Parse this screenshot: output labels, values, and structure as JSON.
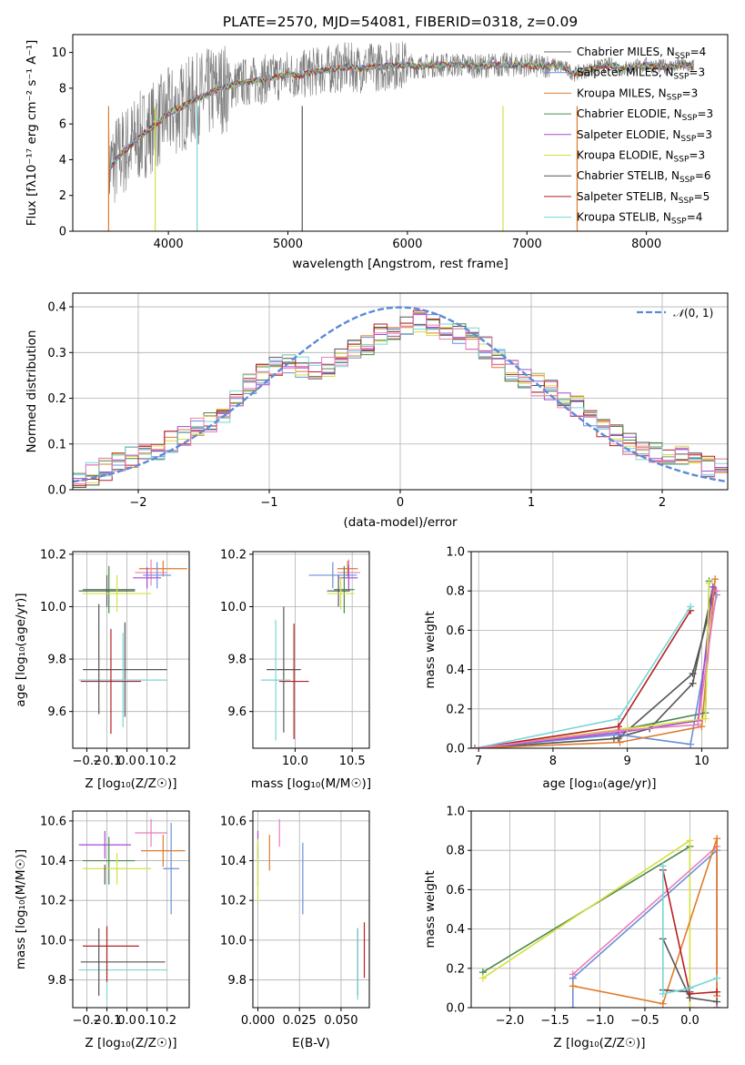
{
  "colors": {
    "chabrier_miles": "#6e6e6e",
    "salpeter_miles": "#6a8fd9",
    "kroupa_miles": "#e07b2a",
    "chabrier_elodie": "#4a8a4a",
    "salpeter_elodie": "#a54ad0",
    "kroupa_elodie": "#d6e040",
    "chabrier_stelib": "#555555",
    "salpeter_stelib": "#b81e22",
    "kroupa_stelib": "#78d6d6",
    "pink": "#e97fb9",
    "normal_curve": "#5b8ad8"
  },
  "chart_data": [
    {
      "id": "spectrum",
      "type": "line",
      "title": "PLATE=2570, MJD=54081, FIBERID=0318, z=0.09",
      "xlabel": "wavelength [Angstrom, rest frame]",
      "ylabel": "Flux [fλ10⁻¹⁷ erg cm⁻² s⁻¹ A⁻¹]",
      "xlim": [
        3200,
        8680
      ],
      "ylim": [
        0,
        11
      ],
      "xticks": [
        "4000",
        "5000",
        "6000",
        "7000",
        "8000"
      ],
      "yticks": [
        "0",
        "2",
        "4",
        "6",
        "8",
        "10"
      ],
      "legend": "upper-right",
      "series": [
        {
          "name": "Chabrier MILES, N_SSP=4",
          "label_main": "Chabrier MILES, N",
          "label_sub": "SSP",
          "label_tail": "=4",
          "color": "#6e6e6e"
        },
        {
          "name": "Salpeter MILES, N_SSP=3",
          "label_main": "Salpeter MILES, N",
          "label_sub": "SSP",
          "label_tail": "=3",
          "color": "#6a8fd9"
        },
        {
          "name": "Kroupa MILES, N_SSP=3",
          "label_main": "Kroupa MILES, N",
          "label_sub": "SSP",
          "label_tail": "=3",
          "color": "#e07b2a"
        },
        {
          "name": "Chabrier ELODIE, N_SSP=3",
          "label_main": "Chabrier ELODIE, N",
          "label_sub": "SSP",
          "label_tail": "=3",
          "color": "#4a8a4a"
        },
        {
          "name": "Salpeter ELODIE, N_SSP=3",
          "label_main": "Salpeter ELODIE, N",
          "label_sub": "SSP",
          "label_tail": "=3",
          "color": "#a54ad0"
        },
        {
          "name": "Kroupa ELODIE, N_SSP=3",
          "label_main": "Kroupa ELODIE, N",
          "label_sub": "SSP",
          "label_tail": "=3",
          "color": "#d6e040"
        },
        {
          "name": "Chabrier STELIB, N_SSP=6",
          "label_main": "Chabrier STELIB, N",
          "label_sub": "SSP",
          "label_tail": "=6",
          "color": "#555555"
        },
        {
          "name": "Salpeter STELIB, N_SSP=5",
          "label_main": "Salpeter STELIB, N",
          "label_sub": "SSP",
          "label_tail": "=5",
          "color": "#b81e22"
        },
        {
          "name": "Kroupa STELIB, N_SSP=4",
          "label_main": "Kroupa STELIB, N",
          "label_sub": "SSP",
          "label_tail": "=4",
          "color": "#78d6d6"
        }
      ],
      "model_curve": {
        "x": [
          3500,
          3600,
          3700,
          3800,
          3900,
          4000,
          4100,
          4200,
          4300,
          4400,
          4500,
          4600,
          4700,
          4800,
          4900,
          5000,
          5100,
          5200,
          5300,
          5400,
          5500,
          5600,
          5700,
          5800,
          5900,
          6000,
          6100,
          6200,
          6300,
          6400,
          6500,
          6600,
          6700,
          6800,
          6900,
          7000,
          7100,
          7200,
          7300,
          7400,
          7500,
          7600,
          7700,
          7800,
          7900,
          8000,
          8100,
          8200,
          8300,
          8400
        ],
        "y": [
          3.5,
          4.3,
          4.9,
          5.5,
          6.0,
          6.6,
          6.9,
          7.3,
          7.6,
          7.9,
          8.1,
          8.3,
          8.4,
          8.5,
          8.6,
          8.8,
          8.7,
          8.9,
          9.0,
          9.1,
          9.2,
          9.1,
          9.2,
          9.2,
          9.3,
          9.3,
          9.2,
          9.3,
          9.3,
          9.3,
          9.3,
          9.2,
          9.3,
          9.3,
          9.3,
          9.3,
          9.2,
          9.3,
          9.2,
          8.8,
          9.0,
          9.2,
          9.3,
          9.1,
          9.2,
          9.3,
          9.2,
          9.2,
          9.3,
          9.2
        ]
      },
      "data_band": {
        "x_start": 3500,
        "x_end": 8400,
        "y_low": 2.0,
        "y_high": 10.9
      }
    },
    {
      "id": "residuals",
      "type": "line",
      "xlabel": "(data-model)/error",
      "ylabel": "Normed distribution",
      "xlim": [
        -2.5,
        2.5
      ],
      "ylim": [
        0,
        0.43
      ],
      "xticks": [
        "−2",
        "−1",
        "0",
        "1",
        "2"
      ],
      "yticks": [
        "0.0",
        "0.1",
        "0.2",
        "0.3",
        "0.4"
      ],
      "legend": "upper-right",
      "reference": {
        "name": "𝒩(0, 1)",
        "label_main": "𝒩",
        "label_tail": "(0, 1)",
        "mean": 0,
        "sigma": 1
      },
      "histogram": {
        "x": [
          -2.5,
          -2.4,
          -2.3,
          -2.2,
          -2.1,
          -2.0,
          -1.9,
          -1.8,
          -1.7,
          -1.6,
          -1.5,
          -1.4,
          -1.3,
          -1.2,
          -1.1,
          -1.0,
          -0.9,
          -0.8,
          -0.7,
          -0.6,
          -0.5,
          -0.4,
          -0.3,
          -0.2,
          -0.1,
          0.0,
          0.1,
          0.2,
          0.3,
          0.4,
          0.5,
          0.6,
          0.7,
          0.8,
          0.9,
          1.0,
          1.1,
          1.2,
          1.3,
          1.4,
          1.5,
          1.6,
          1.7,
          1.8,
          1.9,
          2.0,
          2.1,
          2.2,
          2.3,
          2.4
        ],
        "y": [
          0.03,
          0.035,
          0.045,
          0.06,
          0.07,
          0.08,
          0.09,
          0.105,
          0.12,
          0.135,
          0.15,
          0.17,
          0.2,
          0.23,
          0.25,
          0.27,
          0.28,
          0.27,
          0.26,
          0.27,
          0.29,
          0.31,
          0.32,
          0.34,
          0.35,
          0.36,
          0.37,
          0.36,
          0.35,
          0.34,
          0.33,
          0.31,
          0.29,
          0.26,
          0.24,
          0.23,
          0.22,
          0.2,
          0.18,
          0.16,
          0.14,
          0.12,
          0.1,
          0.09,
          0.08,
          0.07,
          0.07,
          0.06,
          0.05,
          0.05
        ]
      }
    },
    {
      "id": "age-vs-Z",
      "type": "scatter",
      "xlabel": "Z [log₁₀(Z/Z☉)]",
      "ylabel": "age  [log₁₀(age/yr)]",
      "xlim": [
        -0.27,
        0.31
      ],
      "ylim": [
        9.46,
        10.21
      ],
      "xticks": [
        "−0.2",
        "−0.1",
        "0.0",
        "0.1",
        "0.2"
      ],
      "yticks": [
        "9.6",
        "9.8",
        "10.0",
        "10.2"
      ],
      "points": [
        {
          "x": 0.18,
          "y": 10.145,
          "xerr": 0.12,
          "yerr": 0.03,
          "color": "#e07b2a"
        },
        {
          "x": 0.12,
          "y": 10.13,
          "xerr": 0.08,
          "yerr": 0.05,
          "color": "#e97fb9"
        },
        {
          "x": 0.15,
          "y": 10.12,
          "xerr": 0.07,
          "yerr": 0.05,
          "color": "#6a8fd9"
        },
        {
          "x": 0.1,
          "y": 10.11,
          "xerr": 0.07,
          "yerr": 0.04,
          "color": "#a54ad0"
        },
        {
          "x": -0.09,
          "y": 10.065,
          "xerr": 0.13,
          "yerr": 0.09,
          "color": "#4a8a4a"
        },
        {
          "x": -0.1,
          "y": 10.06,
          "xerr": 0.14,
          "yerr": 0.06,
          "color": "#555555"
        },
        {
          "x": -0.05,
          "y": 10.05,
          "xerr": 0.17,
          "yerr": 0.07,
          "color": "#d6e040"
        },
        {
          "x": -0.01,
          "y": 9.76,
          "xerr": 0.21,
          "yerr": 0.18,
          "color": "#555555"
        },
        {
          "x": -0.02,
          "y": 9.72,
          "xerr": 0.22,
          "yerr": 0.18,
          "color": "#78d6d6"
        },
        {
          "x": -0.08,
          "y": 9.715,
          "xerr": 0.15,
          "yerr": 0.2,
          "color": "#b81e22"
        },
        {
          "x": -0.14,
          "y": 9.8,
          "xerr": 0.0,
          "yerr": 0.21,
          "color": "#555555"
        }
      ]
    },
    {
      "id": "age-vs-mass",
      "type": "scatter",
      "xlabel": "mass [log₁₀(M/M☉)]",
      "xlim": [
        9.63,
        10.65
      ],
      "ylim": [
        9.46,
        10.21
      ],
      "xticks": [
        "10.0",
        "10.5"
      ],
      "yticks": [
        "9.6",
        "9.8",
        "10.0",
        "10.2"
      ],
      "points": [
        {
          "x": 10.46,
          "y": 10.145,
          "xerr": 0.09,
          "yerr": 0.03,
          "color": "#e07b2a"
        },
        {
          "x": 10.47,
          "y": 10.13,
          "xerr": 0.1,
          "yerr": 0.05,
          "color": "#e97fb9"
        },
        {
          "x": 10.33,
          "y": 10.12,
          "xerr": 0.21,
          "yerr": 0.05,
          "color": "#6a8fd9"
        },
        {
          "x": 10.47,
          "y": 10.11,
          "xerr": 0.08,
          "yerr": 0.05,
          "color": "#a54ad0"
        },
        {
          "x": 10.43,
          "y": 10.065,
          "xerr": 0.09,
          "yerr": 0.09,
          "color": "#4a8a4a"
        },
        {
          "x": 10.38,
          "y": 10.06,
          "xerr": 0.1,
          "yerr": 0.06,
          "color": "#555555"
        },
        {
          "x": 10.4,
          "y": 10.05,
          "xerr": 0.12,
          "yerr": 0.06,
          "color": "#d6e040"
        },
        {
          "x": 9.9,
          "y": 9.76,
          "xerr": 0.15,
          "yerr": 0.24,
          "color": "#555555"
        },
        {
          "x": 9.83,
          "y": 9.72,
          "xerr": 0.13,
          "yerr": 0.23,
          "color": "#78d6d6"
        },
        {
          "x": 9.99,
          "y": 9.715,
          "xerr": 0.13,
          "yerr": 0.22,
          "color": "#b81e22"
        }
      ]
    },
    {
      "id": "mass-weight-vs-age",
      "type": "line",
      "xlabel": "age  [log₁₀(age/yr)]",
      "ylabel": "mass weight",
      "xlim": [
        6.9,
        10.35
      ],
      "ylim": [
        0,
        1.0
      ],
      "xticks": [
        "7",
        "8",
        "9",
        "10"
      ],
      "yticks": [
        "0.0",
        "0.2",
        "0.4",
        "0.6",
        "0.8",
        "1.0"
      ],
      "series": [
        {
          "color": "#555555",
          "x": [
            6.95,
            8.88,
            9.88,
            10.18
          ],
          "y": [
            0.0,
            0.05,
            0.38,
            0.8
          ]
        },
        {
          "color": "#555555",
          "x": [
            8.82,
            9.3,
            9.88,
            10.15
          ],
          "y": [
            0.05,
            0.1,
            0.33,
            0.82
          ]
        },
        {
          "color": "#6a8fd9",
          "x": [
            6.95,
            8.88,
            9.85,
            10.2
          ],
          "y": [
            0.0,
            0.07,
            0.02,
            0.78
          ]
        },
        {
          "color": "#e07b2a",
          "x": [
            6.95,
            8.9,
            10.0,
            10.18
          ],
          "y": [
            0.0,
            0.03,
            0.11,
            0.86
          ]
        },
        {
          "color": "#4a8a4a",
          "x": [
            6.95,
            9.0,
            10.05,
            10.1
          ],
          "y": [
            0.0,
            0.1,
            0.18,
            0.85
          ]
        },
        {
          "color": "#a54ad0",
          "x": [
            6.95,
            8.9,
            9.95,
            10.15
          ],
          "y": [
            0.0,
            0.08,
            0.14,
            0.82
          ]
        },
        {
          "color": "#d6e040",
          "x": [
            6.95,
            9.0,
            10.05,
            10.1
          ],
          "y": [
            0.0,
            0.1,
            0.15,
            0.84
          ]
        },
        {
          "color": "#b81e22",
          "x": [
            6.95,
            8.88,
            9.85
          ],
          "y": [
            0.0,
            0.11,
            0.7
          ]
        },
        {
          "color": "#78d6d6",
          "x": [
            6.95,
            8.88,
            9.85
          ],
          "y": [
            0.0,
            0.15,
            0.72
          ]
        },
        {
          "color": "#e97fb9",
          "x": [
            6.95,
            8.9,
            9.95,
            10.2
          ],
          "y": [
            0.0,
            0.09,
            0.12,
            0.8
          ]
        }
      ]
    },
    {
      "id": "mass-vs-Z",
      "type": "scatter",
      "xlabel": "Z [log₁₀(Z/Z☉)]",
      "ylabel": "mass [log₁₀(M/M☉)]",
      "xlim": [
        -0.27,
        0.31
      ],
      "ylim": [
        9.66,
        10.65
      ],
      "xticks": [
        "−0.2",
        "−0.1",
        "0.0",
        "0.1",
        "0.2"
      ],
      "yticks": [
        "9.8",
        "10.0",
        "10.2",
        "10.4",
        "10.6"
      ],
      "points": [
        {
          "x": 0.12,
          "y": 10.54,
          "xerr": 0.08,
          "yerr": 0.07,
          "color": "#e97fb9"
        },
        {
          "x": -0.11,
          "y": 10.48,
          "xerr": 0.13,
          "yerr": 0.07,
          "color": "#a54ad0"
        },
        {
          "x": 0.18,
          "y": 10.45,
          "xerr": 0.11,
          "yerr": 0.08,
          "color": "#e07b2a"
        },
        {
          "x": -0.09,
          "y": 10.4,
          "xerr": 0.13,
          "yerr": 0.12,
          "color": "#4a8a4a"
        },
        {
          "x": -0.05,
          "y": 10.36,
          "xerr": 0.17,
          "yerr": 0.08,
          "color": "#d6e040"
        },
        {
          "x": 0.22,
          "y": 10.36,
          "xerr": 0.04,
          "yerr": 0.23,
          "color": "#6a8fd9"
        },
        {
          "x": -0.11,
          "y": 10.33,
          "xerr": 0.0,
          "yerr": 0.05,
          "color": "#555555"
        },
        {
          "x": -0.08,
          "y": 9.97,
          "xerr": 0.14,
          "yerr": 0.0,
          "color": "#b81e22"
        },
        {
          "x": -0.02,
          "y": 9.89,
          "xerr": 0.21,
          "yerr": 0.0,
          "color": "#555555"
        },
        {
          "x": -0.02,
          "y": 9.85,
          "xerr": 0.22,
          "yerr": 0.0,
          "color": "#78d6d6"
        },
        {
          "x": -0.14,
          "y": 9.89,
          "xerr": 0.0,
          "yerr": 0.17,
          "color": "#555555"
        },
        {
          "x": -0.1,
          "y": 9.88,
          "xerr": 0.0,
          "yerr": 0.18,
          "color": "#78d6d6"
        },
        {
          "x": -0.1,
          "y": 9.93,
          "xerr": 0.0,
          "yerr": 0.14,
          "color": "#b81e22"
        }
      ]
    },
    {
      "id": "mass-vs-ebv",
      "type": "scatter",
      "xlabel": "E(B-V)",
      "xlim": [
        -0.003,
        0.067
      ],
      "ylim": [
        9.66,
        10.65
      ],
      "xticks": [
        "0.000",
        "0.025",
        "0.050"
      ],
      "yticks": [
        "9.8",
        "10.0",
        "10.2",
        "10.4",
        "10.6"
      ],
      "points": [
        {
          "x": 0.013,
          "y": 10.54,
          "yerr": 0.07,
          "color": "#e97fb9"
        },
        {
          "x": 0.0,
          "y": 10.48,
          "yerr": 0.07,
          "color": "#a54ad0"
        },
        {
          "x": 0.007,
          "y": 10.44,
          "yerr": 0.09,
          "color": "#e07b2a"
        },
        {
          "x": 0.0,
          "y": 10.37,
          "yerr": 0.1,
          "color": "#4a8a4a"
        },
        {
          "x": 0.0,
          "y": 10.35,
          "yerr": 0.16,
          "color": "#d6e040"
        },
        {
          "x": 0.027,
          "y": 10.31,
          "yerr": 0.18,
          "color": "#6a8fd9"
        },
        {
          "x": 0.06,
          "y": 9.89,
          "yerr": 0.17,
          "color": "#555555"
        },
        {
          "x": 0.06,
          "y": 9.88,
          "yerr": 0.18,
          "color": "#78d6d6"
        },
        {
          "x": 0.064,
          "y": 9.95,
          "yerr": 0.14,
          "color": "#b81e22"
        }
      ]
    },
    {
      "id": "mass-weight-vs-Z",
      "type": "line",
      "xlabel": "Z [log₁₀(Z/Z☉)]",
      "ylabel": "mass weight",
      "xlim": [
        -2.43,
        0.42
      ],
      "ylim": [
        0,
        1.0
      ],
      "xticks": [
        "−2.0",
        "−1.5",
        "−1.0",
        "−0.5",
        "0.0"
      ],
      "yticks": [
        "0.0",
        "0.2",
        "0.4",
        "0.6",
        "0.8",
        "1.0"
      ],
      "series": [
        {
          "color": "#4a8a4a",
          "x": [
            -2.3,
            0.0
          ],
          "y": [
            0.18,
            0.82
          ]
        },
        {
          "color": "#d6e040",
          "x": [
            -2.3,
            0.0,
            0.0
          ],
          "y": [
            0.15,
            0.85,
            0.0
          ]
        },
        {
          "color": "#6a8fd9",
          "x": [
            -1.3,
            0.3,
            0.3
          ],
          "y": [
            0.15,
            0.8,
            0.0
          ]
        },
        {
          "color": "#6a8fd9",
          "x": [
            -1.3,
            -1.3
          ],
          "y": [
            0.0,
            0.15
          ]
        },
        {
          "color": "#e97fb9",
          "x": [
            -1.3,
            0.3,
            0.3
          ],
          "y": [
            0.17,
            0.82,
            0.0
          ]
        },
        {
          "color": "#e07b2a",
          "x": [
            -1.3,
            -0.3,
            0.3,
            0.3
          ],
          "y": [
            0.11,
            0.02,
            0.86,
            0.06
          ]
        },
        {
          "color": "#555555",
          "x": [
            -0.3,
            0.0,
            0.3
          ],
          "y": [
            0.35,
            0.05,
            0.03
          ]
        },
        {
          "color": "#555555",
          "x": [
            -0.3,
            0.0
          ],
          "y": [
            0.09,
            0.08
          ]
        },
        {
          "color": "#b81e22",
          "x": [
            -0.3,
            0.0,
            0.3
          ],
          "y": [
            0.7,
            0.07,
            0.08
          ]
        },
        {
          "color": "#78d6d6",
          "x": [
            -0.3,
            -0.3,
            0.0,
            0.3
          ],
          "y": [
            0.72,
            0.07,
            0.1,
            0.15
          ]
        }
      ]
    }
  ]
}
